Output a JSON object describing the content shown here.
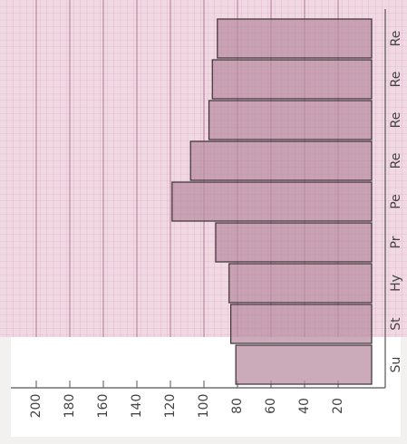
{
  "chart_data": {
    "type": "bar",
    "orientation": "horizontal",
    "categories": [
      "Su",
      "St",
      "Hy",
      "Pr",
      "Pe",
      "Re",
      "Re",
      "Re",
      "Re"
    ],
    "values": [
      81,
      84,
      85,
      93,
      119,
      108,
      97,
      95,
      92
    ],
    "color": "#b98ea3",
    "xlim": [
      0,
      220
    ],
    "xticks": [
      20,
      40,
      60,
      80,
      100,
      120,
      140,
      160,
      180,
      200
    ]
  }
}
